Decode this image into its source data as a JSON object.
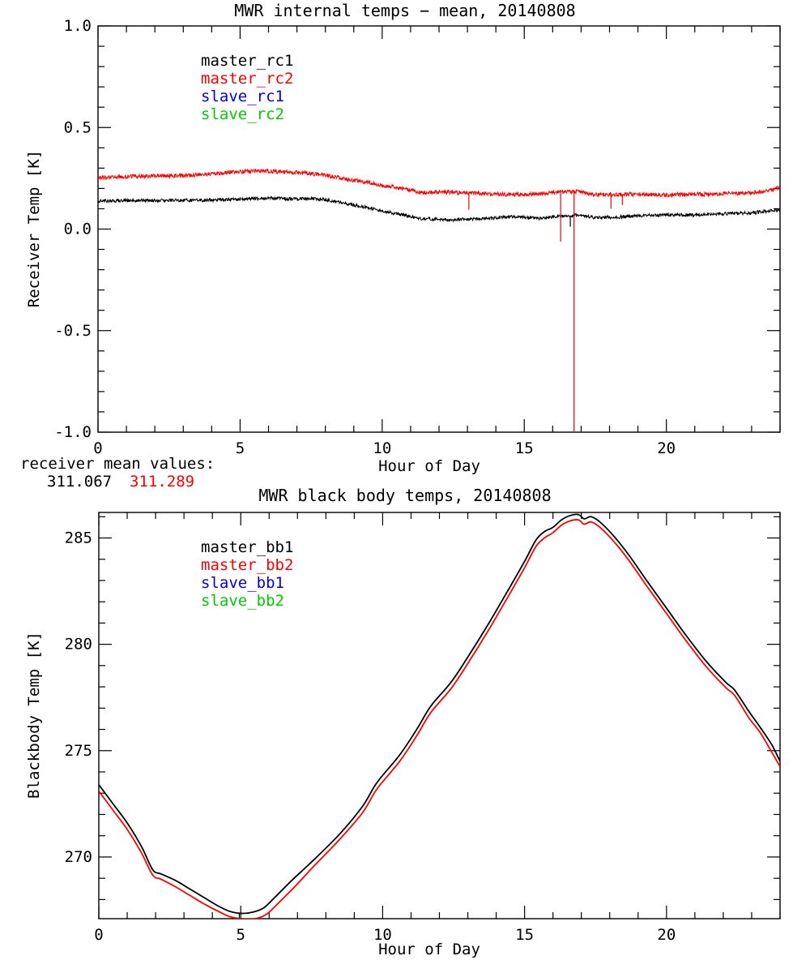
{
  "page": {
    "background": "#ffffff"
  },
  "annotations": {
    "receiver_means_label": "receiver mean values:",
    "receiver_mean_1": "311.067",
    "receiver_mean_1_color": "#000000",
    "receiver_mean_2": "311.289",
    "receiver_mean_2_color": "#ff0000"
  },
  "chart_data": [
    {
      "id": "receiver-temps",
      "type": "line",
      "title": "MWR internal temps − mean, 20140808",
      "xlabel": "Hour of Day",
      "ylabel": "Receiver Temp [K]",
      "xlim": [
        0,
        24
      ],
      "ylim": [
        -1.0,
        1.0
      ],
      "xticks": [
        0,
        5,
        10,
        15,
        20
      ],
      "xticklabels": [
        "0",
        "5",
        "10",
        "15",
        "20"
      ],
      "x_minor_step": 1,
      "yticks": [
        1.0,
        0.5,
        0.0,
        -0.5,
        -1.0
      ],
      "yticklabels": [
        "1.0",
        "0.5",
        "0.0",
        "-0.5",
        "-1.0"
      ],
      "y_minor_step": 0.1,
      "grid": false,
      "legend_position": "upper-left-inside",
      "legend": [
        {
          "label": "master_rc1",
          "color": "#000000"
        },
        {
          "label": "master_rc2",
          "color": "#ff0000"
        },
        {
          "label": "slave_rc1",
          "color": "#0000ee"
        },
        {
          "label": "slave_rc2",
          "color": "#00cc00"
        }
      ],
      "series": [
        {
          "name": "master_rc1",
          "color": "#000000",
          "style": "noisy",
          "noise": 0.008,
          "line_width": 1,
          "points": [
            [
              0,
              0.138
            ],
            [
              1,
              0.14
            ],
            [
              2,
              0.141
            ],
            [
              3,
              0.141
            ],
            [
              4,
              0.142
            ],
            [
              5,
              0.148
            ],
            [
              6,
              0.152
            ],
            [
              6.5,
              0.15
            ],
            [
              7,
              0.148
            ],
            [
              7.5,
              0.152
            ],
            [
              8,
              0.145
            ],
            [
              8.5,
              0.132
            ],
            [
              9,
              0.118
            ],
            [
              9.5,
              0.105
            ],
            [
              10,
              0.09
            ],
            [
              10.5,
              0.075
            ],
            [
              11,
              0.062
            ],
            [
              11.3,
              0.052
            ],
            [
              12,
              0.048
            ],
            [
              12.5,
              0.045
            ],
            [
              13,
              0.048
            ],
            [
              13.5,
              0.05
            ],
            [
              14,
              0.055
            ],
            [
              14.5,
              0.062
            ],
            [
              15,
              0.058
            ],
            [
              15.5,
              0.052
            ],
            [
              16,
              0.06
            ],
            [
              16.5,
              0.065
            ],
            [
              16.9,
              0.07
            ],
            [
              17.2,
              0.062
            ],
            [
              17.6,
              0.055
            ],
            [
              18,
              0.058
            ],
            [
              18.5,
              0.06
            ],
            [
              19,
              0.065
            ],
            [
              19.5,
              0.068
            ],
            [
              20,
              0.07
            ],
            [
              21,
              0.07
            ],
            [
              22,
              0.075
            ],
            [
              23,
              0.08
            ],
            [
              23.5,
              0.088
            ],
            [
              24,
              0.093
            ]
          ],
          "spikes": [
            [
              16.62,
              0.012
            ]
          ]
        },
        {
          "name": "master_rc2",
          "color": "#ff0000",
          "style": "noisy",
          "noise": 0.01,
          "line_width": 1,
          "points": [
            [
              0,
              0.25
            ],
            [
              0.5,
              0.255
            ],
            [
              1,
              0.258
            ],
            [
              2,
              0.262
            ],
            [
              3,
              0.263
            ],
            [
              4,
              0.27
            ],
            [
              4.5,
              0.278
            ],
            [
              5,
              0.282
            ],
            [
              5.5,
              0.285
            ],
            [
              6,
              0.285
            ],
            [
              6.5,
              0.282
            ],
            [
              7,
              0.278
            ],
            [
              7.5,
              0.272
            ],
            [
              8,
              0.265
            ],
            [
              8.5,
              0.252
            ],
            [
              9,
              0.24
            ],
            [
              9.5,
              0.23
            ],
            [
              10,
              0.215
            ],
            [
              10.5,
              0.205
            ],
            [
              11,
              0.19
            ],
            [
              11.4,
              0.178
            ],
            [
              12,
              0.183
            ],
            [
              12.5,
              0.18
            ],
            [
              13,
              0.178
            ],
            [
              13.5,
              0.175
            ],
            [
              14,
              0.172
            ],
            [
              14.5,
              0.17
            ],
            [
              15,
              0.17
            ],
            [
              15.5,
              0.175
            ],
            [
              16,
              0.18
            ],
            [
              16.5,
              0.183
            ],
            [
              16.9,
              0.185
            ],
            [
              17.3,
              0.172
            ],
            [
              17.7,
              0.168
            ],
            [
              18,
              0.17
            ],
            [
              18.5,
              0.17
            ],
            [
              19,
              0.172
            ],
            [
              19.5,
              0.17
            ],
            [
              20,
              0.167
            ],
            [
              20.5,
              0.17
            ],
            [
              21,
              0.172
            ],
            [
              21.5,
              0.17
            ],
            [
              22,
              0.174
            ],
            [
              22.5,
              0.176
            ],
            [
              23,
              0.178
            ],
            [
              23.4,
              0.185
            ],
            [
              23.8,
              0.195
            ],
            [
              24,
              0.21
            ]
          ],
          "spikes": [
            [
              13.05,
              0.095
            ],
            [
              16.28,
              -0.062
            ],
            [
              16.75,
              -1.1
            ],
            [
              18.05,
              0.1
            ],
            [
              18.45,
              0.118
            ]
          ]
        }
      ]
    },
    {
      "id": "blackbody-temps",
      "type": "line",
      "title": "MWR black body temps, 20140808",
      "xlabel": "Hour of Day",
      "ylabel": "Blackbody Temp [K]",
      "xlim": [
        0,
        24
      ],
      "ylim": [
        267.1,
        286.2
      ],
      "xticks": [
        0,
        5,
        10,
        15,
        20
      ],
      "xticklabels": [
        "0",
        "5",
        "10",
        "15",
        "20"
      ],
      "x_minor_step": 1,
      "yticks": [
        285,
        280,
        275,
        270
      ],
      "yticklabels": [
        "285",
        "280",
        "275",
        "270"
      ],
      "y_minor_step": 1,
      "grid": false,
      "legend_position": "upper-left-inside",
      "legend": [
        {
          "label": "master_bb1",
          "color": "#000000"
        },
        {
          "label": "master_bb2",
          "color": "#ff0000"
        },
        {
          "label": "slave_bb1",
          "color": "#0000ee"
        },
        {
          "label": "slave_bb2",
          "color": "#00cc00"
        }
      ],
      "series": [
        {
          "name": "master_bb1",
          "color": "#000000",
          "style": "smooth",
          "noise": 0,
          "line_width": 1.8,
          "points": [
            [
              0,
              273.4
            ],
            [
              0.5,
              272.5
            ],
            [
              1,
              271.6
            ],
            [
              1.5,
              270.5
            ],
            [
              1.9,
              269.4
            ],
            [
              2.2,
              269.2
            ],
            [
              2.7,
              268.9
            ],
            [
              3.2,
              268.5
            ],
            [
              3.7,
              268.1
            ],
            [
              4.2,
              267.7
            ],
            [
              4.6,
              267.45
            ],
            [
              5,
              267.35
            ],
            [
              5.4,
              267.4
            ],
            [
              5.8,
              267.6
            ],
            [
              6.2,
              268.1
            ],
            [
              6.8,
              268.9
            ],
            [
              7.6,
              269.9
            ],
            [
              8.5,
              271.1
            ],
            [
              9.3,
              272.4
            ],
            [
              9.8,
              273.5
            ],
            [
              10.6,
              274.8
            ],
            [
              11.2,
              276.0
            ],
            [
              11.7,
              277.1
            ],
            [
              12.4,
              278.2
            ],
            [
              13,
              279.4
            ],
            [
              13.7,
              280.9
            ],
            [
              14.4,
              282.5
            ],
            [
              15,
              283.9
            ],
            [
              15.4,
              284.9
            ],
            [
              15.7,
              285.3
            ],
            [
              16,
              285.5
            ],
            [
              16.3,
              285.85
            ],
            [
              16.6,
              286.05
            ],
            [
              16.9,
              286.1
            ],
            [
              17.1,
              285.9
            ],
            [
              17.35,
              286.0
            ],
            [
              17.7,
              285.7
            ],
            [
              18.2,
              285.0
            ],
            [
              18.7,
              284.15
            ],
            [
              19.3,
              283.0
            ],
            [
              20,
              281.7
            ],
            [
              20.7,
              280.4
            ],
            [
              21.4,
              279.2
            ],
            [
              22.1,
              278.2
            ],
            [
              22.4,
              277.85
            ],
            [
              22.9,
              276.85
            ],
            [
              23.3,
              276.1
            ],
            [
              23.7,
              275.3
            ],
            [
              24,
              274.5
            ]
          ],
          "spikes": [
            [
              4.95,
              267.12
            ]
          ]
        },
        {
          "name": "master_bb2",
          "color": "#ff0000",
          "style": "smooth",
          "noise": 0,
          "line_width": 1.8,
          "points": [
            [
              0,
              273.1
            ],
            [
              0.5,
              272.2
            ],
            [
              1,
              271.3
            ],
            [
              1.5,
              270.2
            ],
            [
              1.9,
              269.15
            ],
            [
              2.2,
              268.95
            ],
            [
              2.7,
              268.6
            ],
            [
              3.2,
              268.2
            ],
            [
              3.7,
              267.8
            ],
            [
              4.2,
              267.45
            ],
            [
              4.6,
              267.2
            ],
            [
              5,
              267.1
            ],
            [
              5.5,
              267.1
            ],
            [
              5.9,
              267.3
            ],
            [
              6.3,
              267.8
            ],
            [
              6.9,
              268.6
            ],
            [
              7.6,
              269.6
            ],
            [
              8.5,
              270.85
            ],
            [
              9.3,
              272.1
            ],
            [
              9.8,
              273.2
            ],
            [
              10.6,
              274.5
            ],
            [
              11.2,
              275.7
            ],
            [
              11.7,
              276.8
            ],
            [
              12.4,
              277.9
            ],
            [
              13,
              279.1
            ],
            [
              13.7,
              280.6
            ],
            [
              14.4,
              282.2
            ],
            [
              15,
              283.6
            ],
            [
              15.4,
              284.6
            ],
            [
              15.7,
              285.0
            ],
            [
              16,
              285.25
            ],
            [
              16.3,
              285.6
            ],
            [
              16.6,
              285.8
            ],
            [
              16.9,
              285.85
            ],
            [
              17.1,
              285.65
            ],
            [
              17.35,
              285.75
            ],
            [
              17.7,
              285.45
            ],
            [
              18.2,
              284.75
            ],
            [
              18.7,
              283.9
            ],
            [
              19.3,
              282.75
            ],
            [
              20,
              281.45
            ],
            [
              20.7,
              280.15
            ],
            [
              21.4,
              278.95
            ],
            [
              22.1,
              277.95
            ],
            [
              22.4,
              277.6
            ],
            [
              22.9,
              276.55
            ],
            [
              23.3,
              275.85
            ],
            [
              23.7,
              274.95
            ],
            [
              24,
              274.25
            ]
          ],
          "spikes": []
        }
      ]
    }
  ]
}
